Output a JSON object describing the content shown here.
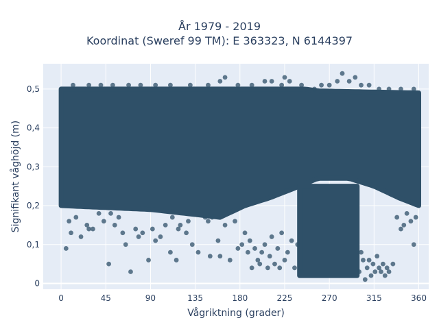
{
  "chart_data": {
    "type": "scatter",
    "title_line1": "År 1979 - 2019",
    "title_line2": "Koordinat (Sweref 99 TM): E 363323, N 6144397",
    "xlabel": "Vågriktning (grader)",
    "ylabel": "Signifikant våghöjd (m)",
    "xlim": [
      -18,
      370
    ],
    "ylim": [
      -0.015,
      0.565
    ],
    "xticks": [
      0,
      45,
      90,
      135,
      180,
      225,
      270,
      315,
      360
    ],
    "xtick_labels": [
      "0",
      "45",
      "90",
      "135",
      "180",
      "225",
      "270",
      "315",
      "360"
    ],
    "yticks": [
      0,
      0.1,
      0.2,
      0.3,
      0.4,
      0.5
    ],
    "ytick_labels": [
      "0",
      "0,1",
      "0,2",
      "0,3",
      "0,4",
      "0,5"
    ],
    "grid": true,
    "marker_color": "#2f5068",
    "background": "#e5ecf6",
    "dense_region": {
      "x": [
        0,
        360
      ],
      "y_low": [
        [
          0,
          0.2
        ],
        [
          90,
          0.19
        ],
        [
          160,
          0.17
        ],
        [
          185,
          0.2
        ],
        [
          210,
          0.22
        ],
        [
          240,
          0.25
        ],
        [
          258,
          0.27
        ],
        [
          290,
          0.27
        ],
        [
          315,
          0.25
        ],
        [
          340,
          0.22
        ],
        [
          360,
          0.2
        ]
      ],
      "y_high": [
        [
          0,
          0.5
        ],
        [
          245,
          0.5
        ],
        [
          260,
          0.495
        ],
        [
          360,
          0.49
        ]
      ]
    },
    "low_cluster": {
      "x": [
        240,
        298
      ],
      "y": [
        0.02,
        0.25
      ]
    },
    "points": [
      [
        5,
        0.09
      ],
      [
        8,
        0.16
      ],
      [
        10,
        0.13
      ],
      [
        15,
        0.17
      ],
      [
        18,
        0.2
      ],
      [
        20,
        0.12
      ],
      [
        26,
        0.15
      ],
      [
        28,
        0.14
      ],
      [
        32,
        0.14
      ],
      [
        38,
        0.18
      ],
      [
        43,
        0.16
      ],
      [
        48,
        0.05
      ],
      [
        50,
        0.18
      ],
      [
        54,
        0.15
      ],
      [
        58,
        0.17
      ],
      [
        62,
        0.13
      ],
      [
        65,
        0.1
      ],
      [
        70,
        0.03
      ],
      [
        75,
        0.14
      ],
      [
        78,
        0.12
      ],
      [
        82,
        0.13
      ],
      [
        88,
        0.06
      ],
      [
        92,
        0.14
      ],
      [
        95,
        0.11
      ],
      [
        100,
        0.12
      ],
      [
        105,
        0.15
      ],
      [
        110,
        0.08
      ],
      [
        112,
        0.17
      ],
      [
        116,
        0.06
      ],
      [
        118,
        0.14
      ],
      [
        120,
        0.15
      ],
      [
        126,
        0.13
      ],
      [
        128,
        0.16
      ],
      [
        132,
        0.1
      ],
      [
        138,
        0.08
      ],
      [
        145,
        0.17
      ],
      [
        148,
        0.16
      ],
      [
        150,
        0.07
      ],
      [
        152,
        0.17
      ],
      [
        158,
        0.11
      ],
      [
        160,
        0.07
      ],
      [
        165,
        0.15
      ],
      [
        170,
        0.06
      ],
      [
        175,
        0.16
      ],
      [
        178,
        0.09
      ],
      [
        182,
        0.1
      ],
      [
        185,
        0.13
      ],
      [
        188,
        0.08
      ],
      [
        190,
        0.11
      ],
      [
        192,
        0.04
      ],
      [
        195,
        0.09
      ],
      [
        198,
        0.06
      ],
      [
        200,
        0.05
      ],
      [
        202,
        0.08
      ],
      [
        205,
        0.1
      ],
      [
        208,
        0.04
      ],
      [
        210,
        0.07
      ],
      [
        212,
        0.12
      ],
      [
        215,
        0.05
      ],
      [
        218,
        0.09
      ],
      [
        220,
        0.04
      ],
      [
        222,
        0.13
      ],
      [
        225,
        0.06
      ],
      [
        228,
        0.08
      ],
      [
        232,
        0.11
      ],
      [
        235,
        0.04
      ],
      [
        238,
        0.1
      ],
      [
        242,
        0.03
      ],
      [
        300,
        0.03
      ],
      [
        302,
        0.08
      ],
      [
        304,
        0.06
      ],
      [
        306,
        0.01
      ],
      [
        308,
        0.04
      ],
      [
        310,
        0.06
      ],
      [
        312,
        0.02
      ],
      [
        314,
        0.05
      ],
      [
        316,
        0.03
      ],
      [
        318,
        0.07
      ],
      [
        320,
        0.04
      ],
      [
        322,
        0.03
      ],
      [
        324,
        0.05
      ],
      [
        326,
        0.02
      ],
      [
        328,
        0.04
      ],
      [
        330,
        0.03
      ],
      [
        334,
        0.05
      ],
      [
        338,
        0.17
      ],
      [
        342,
        0.14
      ],
      [
        345,
        0.15
      ],
      [
        348,
        0.18
      ],
      [
        352,
        0.16
      ],
      [
        355,
        0.1
      ],
      [
        357,
        0.17
      ],
      [
        12,
        0.51
      ],
      [
        28,
        0.51
      ],
      [
        40,
        0.51
      ],
      [
        52,
        0.51
      ],
      [
        68,
        0.51
      ],
      [
        80,
        0.51
      ],
      [
        95,
        0.51
      ],
      [
        110,
        0.51
      ],
      [
        130,
        0.51
      ],
      [
        148,
        0.51
      ],
      [
        160,
        0.52
      ],
      [
        165,
        0.53
      ],
      [
        178,
        0.51
      ],
      [
        192,
        0.51
      ],
      [
        205,
        0.52
      ],
      [
        212,
        0.52
      ],
      [
        222,
        0.51
      ],
      [
        225,
        0.53
      ],
      [
        230,
        0.52
      ],
      [
        242,
        0.51
      ],
      [
        255,
        0.5
      ],
      [
        262,
        0.51
      ],
      [
        270,
        0.51
      ],
      [
        278,
        0.52
      ],
      [
        283,
        0.54
      ],
      [
        290,
        0.52
      ],
      [
        296,
        0.53
      ],
      [
        302,
        0.51
      ],
      [
        310,
        0.51
      ],
      [
        320,
        0.5
      ],
      [
        330,
        0.5
      ],
      [
        342,
        0.5
      ],
      [
        355,
        0.5
      ]
    ]
  }
}
